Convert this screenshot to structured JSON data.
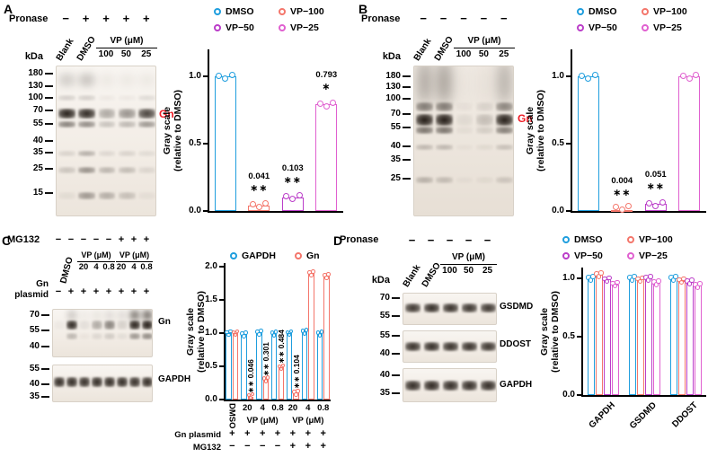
{
  "colors": {
    "dmso_blue": "#1f9ede",
    "vp100_coral": "#f4766b",
    "vp50_magenta": "#bb3ec9",
    "vp25_pink": "#e060d0",
    "gn_red": "#ee1c25",
    "band_dark": "#1a130d",
    "axis_black": "#000000"
  },
  "panels": {
    "A": {
      "label": "A",
      "blot": {
        "condition_label": "Pronase",
        "condition_symbols": [
          "−",
          "+",
          "+",
          "+",
          "+"
        ],
        "rotated_lane_labels": [
          "Blank",
          "DMSO"
        ],
        "vp_group_label": "VP (μM)",
        "vp_doses": [
          "100",
          "50",
          "25"
        ],
        "kda_label": "kDa",
        "band_label": "Gn",
        "markers": [
          {
            "kda": "180",
            "frac": 0.055
          },
          {
            "kda": "130",
            "frac": 0.135
          },
          {
            "kda": "100",
            "frac": 0.215
          },
          {
            "kda": "70",
            "frac": 0.3
          },
          {
            "kda": "55",
            "frac": 0.385
          },
          {
            "kda": "40",
            "frac": 0.5
          },
          {
            "kda": "35",
            "frac": 0.575
          },
          {
            "kda": "25",
            "frac": 0.685
          },
          {
            "kda": "15",
            "frac": 0.845
          }
        ],
        "bands": [
          {
            "frac": 0.315,
            "h": 11,
            "intensities": [
              0.95,
              0.9,
              0.32,
              0.42,
              0.78
            ]
          },
          {
            "frac": 0.385,
            "h": 7,
            "intensities": [
              0.5,
              0.45,
              0.2,
              0.25,
              0.4
            ]
          },
          {
            "frac": 0.09,
            "h": 16,
            "blur": 4,
            "intensities": [
              0.18,
              0.22,
              0.05,
              0.05,
              0.05
            ]
          },
          {
            "frac": 0.21,
            "h": 6,
            "intensities": [
              0.15,
              0.15,
              0.04,
              0.04,
              0.1
            ]
          },
          {
            "frac": 0.575,
            "h": 6,
            "intensities": [
              0.12,
              0.28,
              0.1,
              0.12,
              0.08
            ]
          },
          {
            "frac": 0.685,
            "h": 7,
            "intensities": [
              0.18,
              0.42,
              0.25,
              0.22,
              0.1
            ]
          },
          {
            "frac": 0.86,
            "h": 8,
            "intensities": [
              0.06,
              0.38,
              0.28,
              0.2,
              0.05
            ]
          }
        ]
      }
    },
    "B": {
      "label": "B",
      "blot": {
        "condition_label": "Pronase",
        "condition_symbols": [
          "−",
          "−",
          "−",
          "−",
          "−"
        ],
        "rotated_lane_labels": [
          "Blank",
          "DMSO"
        ],
        "vp_group_label": "VP (μM)",
        "vp_doses": [
          "100",
          "50",
          "25"
        ],
        "kda_label": "kDa",
        "band_label": "Gn",
        "markers": [
          {
            "kda": "180",
            "frac": 0.07
          },
          {
            "kda": "130",
            "frac": 0.145
          },
          {
            "kda": "100",
            "frac": 0.22
          },
          {
            "kda": "70",
            "frac": 0.32
          },
          {
            "kda": "55",
            "frac": 0.41
          },
          {
            "kda": "40",
            "frac": 0.535
          },
          {
            "kda": "35",
            "frac": 0.625
          },
          {
            "kda": "25",
            "frac": 0.75
          }
        ],
        "bands": [
          {
            "frac": 0.355,
            "h": 13,
            "intensities": [
              0.97,
              0.97,
              0.07,
              0.2,
              0.95
            ]
          },
          {
            "frac": 0.42,
            "h": 8,
            "intensities": [
              0.55,
              0.55,
              0.05,
              0.12,
              0.5
            ]
          },
          {
            "frac": 0.1,
            "h": 50,
            "blur": 6,
            "intensities": [
              0.32,
              0.36,
              0.03,
              0.05,
              0.28
            ]
          },
          {
            "frac": 0.27,
            "h": 10,
            "intensities": [
              0.5,
              0.5,
              0.04,
              0.1,
              0.45
            ]
          },
          {
            "frac": 0.535,
            "h": 6,
            "intensities": [
              0.22,
              0.22,
              0.03,
              0.06,
              0.18
            ]
          },
          {
            "frac": 0.75,
            "h": 7,
            "intensities": [
              0.25,
              0.2,
              0.03,
              0.05,
              0.15
            ]
          }
        ]
      }
    },
    "C": {
      "label": "C",
      "condition_label": "MG132",
      "condition_symbols": [
        "−",
        "−",
        "−",
        "−",
        "−",
        "+",
        "+",
        "+"
      ],
      "rotated_lane_label": "DMSO",
      "vp_groups": [
        {
          "label": "VP (μM)",
          "doses": [
            "20",
            "4",
            "0.8"
          ],
          "start_lane": 2
        },
        {
          "label": "VP (μM)",
          "doses": [
            "20",
            "4",
            "0.8"
          ],
          "start_lane": 5
        }
      ],
      "plasmid_label_lines": [
        "Gn",
        "plasmid"
      ],
      "plasmid_symbols": [
        "−",
        "+",
        "+",
        "+",
        "+",
        "+",
        "+",
        "+"
      ],
      "blots": [
        {
          "label": "Gn",
          "markers": [
            {
              "kda": "70",
              "frac": 0.13
            },
            {
              "kda": "55",
              "frac": 0.45
            },
            {
              "kda": "40",
              "frac": 0.78
            }
          ],
          "bands": [
            {
              "frac": 0.32,
              "h": 10,
              "intensities": [
                0.03,
                0.9,
                0.08,
                0.32,
                0.5,
                0.14,
                0.93,
                0.95
              ]
            },
            {
              "frac": 0.12,
              "h": 12,
              "blur": 3,
              "intensities": [
                0.02,
                0.18,
                0.03,
                0.06,
                0.1,
                0.1,
                0.55,
                0.6
              ]
            },
            {
              "frac": 0.55,
              "h": 7,
              "intensities": [
                0.02,
                0.25,
                0.04,
                0.1,
                0.16,
                0.07,
                0.4,
                0.45
              ]
            }
          ]
        },
        {
          "label": "GAPDH",
          "markers": [
            {
              "kda": "55",
              "frac": 0.12
            },
            {
              "kda": "40",
              "frac": 0.52
            },
            {
              "kda": "35",
              "frac": 0.85
            }
          ],
          "bands": [
            {
              "frac": 0.45,
              "h": 11,
              "intensities": [
                0.9,
                0.9,
                0.88,
                0.9,
                0.9,
                0.9,
                0.88,
                0.9
              ]
            }
          ]
        }
      ]
    },
    "D": {
      "label": "D",
      "blot_header": {
        "condition_label": "Pronase",
        "condition_symbols": [
          "−",
          "−",
          "−",
          "−",
          "−"
        ],
        "rotated_lane_labels": [
          "Blank",
          "DMSO"
        ],
        "vp_group_label": "VP (μM)",
        "vp_doses": [
          "100",
          "50",
          "25"
        ],
        "kda_label": "kDa"
      },
      "blots": [
        {
          "label": "GSDMD",
          "markers": [
            {
              "kda": "70",
              "frac": 0.18
            },
            {
              "kda": "55",
              "frac": 0.72
            }
          ],
          "bands": [
            {
              "frac": 0.45,
              "h": 10,
              "intensities": [
                0.85,
                0.9,
                0.88,
                0.86,
                0.85
              ]
            }
          ]
        },
        {
          "label": "DDOST",
          "markers": [
            {
              "kda": "55",
              "frac": 0.18
            },
            {
              "kda": "40",
              "frac": 0.72
            }
          ],
          "bands": [
            {
              "frac": 0.48,
              "h": 10,
              "intensities": [
                0.88,
                0.9,
                0.88,
                0.88,
                0.86
              ]
            }
          ]
        },
        {
          "label": "GAPDH",
          "markers": [
            {
              "kda": "40",
              "frac": 0.2
            },
            {
              "kda": "35",
              "frac": 0.74
            }
          ],
          "bands": [
            {
              "frac": 0.48,
              "h": 11,
              "intensities": [
                0.9,
                0.92,
                0.9,
                0.9,
                0.9
              ]
            }
          ]
        }
      ]
    }
  },
  "chart_data": [
    {
      "type": "bar",
      "panel": "A",
      "ylabel": "Gray scale (relative to DMSO)",
      "ylabel_lines": [
        "Gray scale",
        "(relative to DMSO)"
      ],
      "yticks": [
        0,
        0.5,
        1.0
      ],
      "ylim": [
        0,
        1.2
      ],
      "categories": [
        "DMSO",
        "VP−100",
        "VP−50",
        "VP−25"
      ],
      "values": [
        1.0,
        0.041,
        0.103,
        0.793
      ],
      "colors": [
        "dmso_blue",
        "vp100_coral",
        "vp50_magenta",
        "vp25_pink"
      ],
      "annotations": [
        null,
        {
          "value": "0.041",
          "sig": "∗∗"
        },
        {
          "value": "0.103",
          "sig": "∗∗"
        },
        {
          "value": "0.793",
          "sig": "∗"
        }
      ],
      "legend": [
        {
          "label": "DMSO",
          "color": "dmso_blue"
        },
        {
          "label": "VP−100",
          "color": "vp100_coral"
        },
        {
          "label": "VP−50",
          "color": "vp50_magenta"
        },
        {
          "label": "VP−25",
          "color": "vp25_pink"
        }
      ],
      "x_tick_labels_visible": false,
      "points_per_bar": 3
    },
    {
      "type": "bar",
      "panel": "B",
      "ylabel": "Gray scale (relative to DMSO)",
      "ylabel_lines": [
        "Gray scale",
        "(relative to DMSO)"
      ],
      "yticks": [
        0,
        0.5,
        1.0
      ],
      "ylim": [
        0,
        1.2
      ],
      "categories": [
        "DMSO",
        "VP−100",
        "VP−50",
        "VP−25"
      ],
      "values": [
        1.0,
        0.004,
        0.051,
        1.0
      ],
      "colors": [
        "dmso_blue",
        "vp100_coral",
        "vp50_magenta",
        "vp25_pink"
      ],
      "annotations": [
        null,
        {
          "value": "0.004",
          "sig": "∗∗"
        },
        {
          "value": "0.051",
          "sig": "∗∗"
        },
        null
      ],
      "legend": [
        {
          "label": "DMSO",
          "color": "dmso_blue"
        },
        {
          "label": "VP−100",
          "color": "vp100_coral"
        },
        {
          "label": "VP−50",
          "color": "vp50_magenta"
        },
        {
          "label": "VP−25",
          "color": "vp25_pink"
        }
      ],
      "x_tick_labels_visible": false,
      "points_per_bar": 3
    },
    {
      "type": "grouped_bar",
      "panel": "C",
      "ylabel": "Gray scale (relative to DMSO)",
      "ylabel_lines": [
        "Gray scale",
        "(relative to DMSO)"
      ],
      "yticks": [
        0,
        0.5,
        1.0,
        1.5,
        2.0
      ],
      "ylim": [
        0,
        2.05
      ],
      "categories": [
        "DMSO",
        "20",
        "4",
        "0.8",
        "20",
        "4",
        "0.8"
      ],
      "series": [
        {
          "name": "GAPDH",
          "color": "dmso_blue",
          "values": [
            1.0,
            0.98,
            1.01,
            0.99,
            1.0,
            1.02,
            0.99
          ]
        },
        {
          "name": "Gn",
          "color": "vp100_coral",
          "values": [
            1.0,
            0.046,
            0.301,
            0.484,
            0.104,
            1.9,
            1.86
          ],
          "annotations": [
            null,
            {
              "value": "0.046",
              "sig": "∗∗"
            },
            {
              "value": "0.301",
              "sig": "∗∗"
            },
            {
              "value": "0.484",
              "sig": "∗∗"
            },
            {
              "value": "0.104",
              "sig": "∗∗"
            },
            null,
            null
          ]
        }
      ],
      "group_brackets": [
        {
          "label": "VP (μM)",
          "from": 1,
          "to": 3
        },
        {
          "label": "VP (μM)",
          "from": 4,
          "to": 6
        }
      ],
      "bottom_rows": [
        {
          "label": "Gn plasmid",
          "symbols": [
            "+",
            "+",
            "+",
            "+",
            "+",
            "+",
            "+"
          ]
        },
        {
          "label": "MG132",
          "symbols": [
            "−",
            "−",
            "−",
            "−",
            "+",
            "+",
            "+"
          ]
        }
      ],
      "legend": [
        {
          "label": "GAPDH",
          "color": "dmso_blue"
        },
        {
          "label": "Gn",
          "color": "vp100_coral"
        }
      ]
    },
    {
      "type": "grouped_bar",
      "panel": "D",
      "ylabel": "Gray scale (relative to DMSO)",
      "ylabel_lines": [
        "Gray scale",
        "(relative to DMSO)"
      ],
      "yticks": [
        0,
        0.5,
        1.0
      ],
      "ylim": [
        0,
        1.1
      ],
      "categories": [
        "GAPDH",
        "GSDMD",
        "DDOST"
      ],
      "series": [
        {
          "name": "DMSO",
          "color": "dmso_blue",
          "values": [
            1.0,
            1.0,
            1.0
          ]
        },
        {
          "name": "VP−100",
          "color": "vp100_coral",
          "values": [
            1.03,
            0.99,
            0.98
          ]
        },
        {
          "name": "VP−50",
          "color": "vp50_magenta",
          "values": [
            0.99,
            1.0,
            0.97
          ]
        },
        {
          "name": "VP−25",
          "color": "vp25_pink",
          "values": [
            0.95,
            0.96,
            0.94
          ]
        }
      ],
      "legend": [
        {
          "label": "DMSO",
          "color": "dmso_blue"
        },
        {
          "label": "VP−100",
          "color": "vp100_coral"
        },
        {
          "label": "VP−50",
          "color": "vp50_magenta"
        },
        {
          "label": "VP−25",
          "color": "vp25_pink"
        }
      ]
    }
  ]
}
